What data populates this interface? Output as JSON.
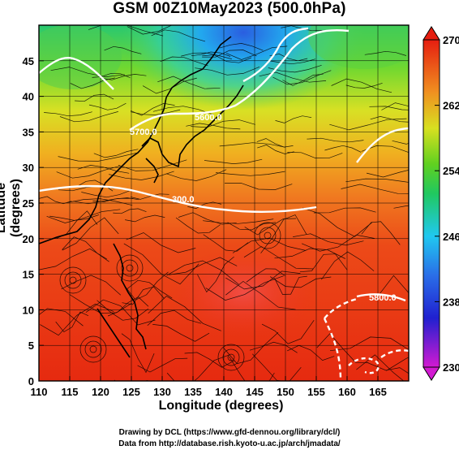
{
  "title": "GSM 00Z10May2023 (500.0hPa)",
  "xlabel": "Longitude (degrees)",
  "ylabel": "Latitude  (degrees)",
  "credit_line1": "Drawing by DCL (https://www.gfd-dennou.org/library/dcl/)",
  "credit_line2": "Data from http://database.rish.kyoto-u.ac.jp/arch/jmadata/",
  "map": {
    "lon_range": [
      110,
      170
    ],
    "lat_range": [
      0,
      50
    ],
    "x_ticks": [
      "110",
      "115",
      "120",
      "125",
      "130",
      "135",
      "140",
      "145",
      "150",
      "155",
      "160",
      "165"
    ],
    "y_ticks": [
      "0",
      "5",
      "10",
      "15",
      "20",
      "25",
      "30",
      "35",
      "40",
      "45"
    ],
    "variable": "temperature (K) with streamlines",
    "contour_labels": [
      "300.0",
      "5600.0",
      "5700.0",
      "5800.0"
    ]
  },
  "colorbar": {
    "range": [
      230,
      270
    ],
    "ticks": [
      "230",
      "238",
      "246",
      "254",
      "262",
      "270"
    ]
  },
  "colors": {
    "cold": "#d01ad0",
    "warm": "#e82000",
    "background": "#ffffff"
  }
}
